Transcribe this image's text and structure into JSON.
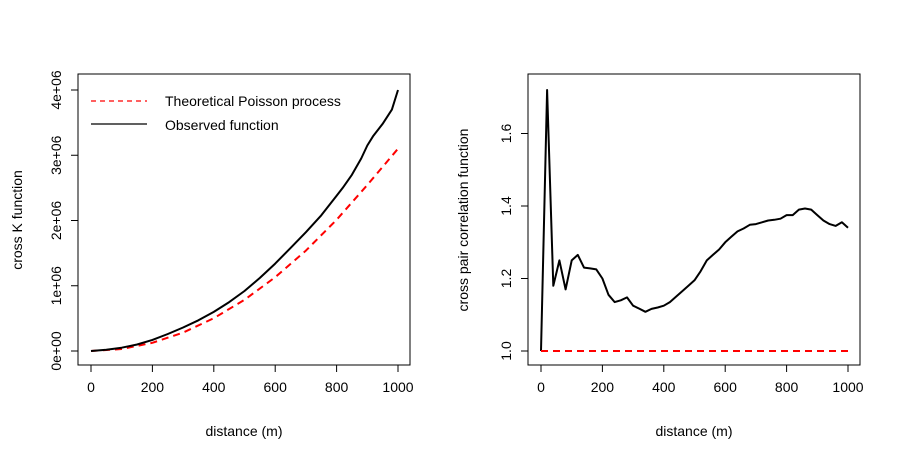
{
  "chart_data": [
    {
      "type": "line",
      "xlabel": "distance (m)",
      "ylabel": "cross K function",
      "xlim": [
        0,
        1000
      ],
      "ylim": [
        0,
        4000000
      ],
      "xticks": [
        0,
        200,
        400,
        600,
        800,
        1000
      ],
      "xtick_labels": [
        "0",
        "200",
        "400",
        "600",
        "800",
        "1000"
      ],
      "yticks": [
        0,
        1000000,
        2000000,
        3000000,
        4000000
      ],
      "ytick_labels": [
        "0e+00",
        "1e+06",
        "2e+06",
        "3e+06",
        "4e+06"
      ],
      "legend": {
        "position": "top-left",
        "entries": [
          {
            "label": "Theoretical Poisson process",
            "color": "#ff0000",
            "dash": "dashed"
          },
          {
            "label": "Observed function",
            "color": "#000000",
            "dash": "solid"
          }
        ]
      },
      "series": [
        {
          "name": "Theoretical Poisson process",
          "color": "#ff0000",
          "dash": "dashed",
          "x": [
            0,
            100,
            200,
            300,
            400,
            500,
            600,
            700,
            800,
            900,
            1000
          ],
          "y": [
            0,
            31400,
            125700,
            282700,
            502700,
            785400,
            1131000,
            1539400,
            2010600,
            2544700,
            3100000
          ]
        },
        {
          "name": "Observed function",
          "color": "#000000",
          "dash": "solid",
          "x": [
            0,
            50,
            100,
            150,
            200,
            250,
            300,
            350,
            400,
            450,
            500,
            550,
            600,
            650,
            700,
            750,
            800,
            820,
            850,
            880,
            900,
            920,
            950,
            980,
            1000
          ],
          "y": [
            0,
            20000,
            50000,
            100000,
            170000,
            260000,
            360000,
            470000,
            600000,
            750000,
            920000,
            1120000,
            1340000,
            1580000,
            1820000,
            2080000,
            2380000,
            2500000,
            2700000,
            2950000,
            3150000,
            3300000,
            3480000,
            3700000,
            4000000
          ]
        }
      ]
    },
    {
      "type": "line",
      "xlabel": "distance (m)",
      "ylabel": "cross pair correlation function",
      "xlim": [
        0,
        1000
      ],
      "ylim": [
        1.0,
        1.72
      ],
      "xticks": [
        0,
        200,
        400,
        600,
        800,
        1000
      ],
      "xtick_labels": [
        "0",
        "200",
        "400",
        "600",
        "800",
        "1000"
      ],
      "yticks": [
        1.0,
        1.2,
        1.4,
        1.6
      ],
      "ytick_labels": [
        "1.0",
        "1.2",
        "1.4",
        "1.6"
      ],
      "series": [
        {
          "color": "#000000",
          "dash": "solid",
          "x": [
            0,
            20,
            40,
            60,
            80,
            100,
            120,
            140,
            160,
            180,
            200,
            220,
            240,
            260,
            280,
            300,
            320,
            340,
            360,
            380,
            400,
            420,
            440,
            460,
            480,
            500,
            520,
            540,
            560,
            580,
            600,
            620,
            640,
            660,
            680,
            700,
            720,
            740,
            760,
            780,
            800,
            820,
            840,
            860,
            880,
            900,
            920,
            940,
            960,
            980,
            1000
          ],
          "y": [
            1.0,
            1.72,
            1.18,
            1.25,
            1.17,
            1.25,
            1.265,
            1.23,
            1.228,
            1.225,
            1.2,
            1.155,
            1.135,
            1.14,
            1.148,
            1.125,
            1.117,
            1.108,
            1.116,
            1.12,
            1.125,
            1.135,
            1.15,
            1.165,
            1.18,
            1.195,
            1.22,
            1.25,
            1.265,
            1.28,
            1.3,
            1.315,
            1.33,
            1.338,
            1.348,
            1.35,
            1.355,
            1.36,
            1.362,
            1.365,
            1.375,
            1.375,
            1.39,
            1.393,
            1.39,
            1.375,
            1.36,
            1.35,
            1.345,
            1.355,
            1.34
          ]
        },
        {
          "color": "#ff0000",
          "dash": "dashed",
          "x": [
            0,
            1000
          ],
          "y": [
            1.0,
            1.0
          ]
        }
      ]
    }
  ]
}
